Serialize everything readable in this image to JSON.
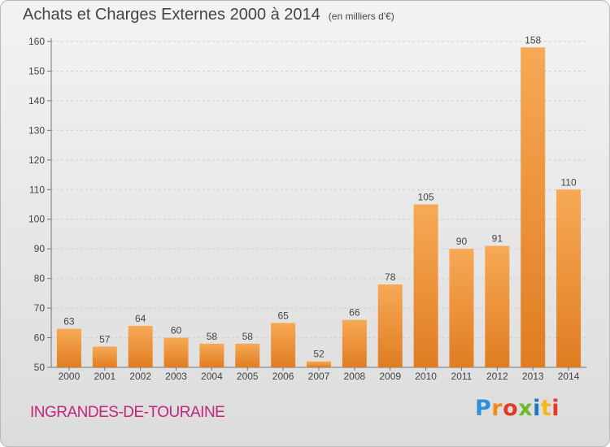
{
  "header": {
    "title": "Achats et Charges Externes 2000 à 2014",
    "unit": "(en milliers d'€)"
  },
  "footer": {
    "town": "INGRANDES-DE-TOURAINE",
    "logo": [
      "P",
      "r",
      "o",
      "x",
      "i",
      "t",
      "i"
    ]
  },
  "colors": {
    "bar_light": "#f7a955",
    "bar_dark": "#e07d22",
    "grid": "#cfcfcf",
    "axis": "#777777",
    "town": "#c2267a"
  },
  "chart_data": {
    "type": "bar",
    "title": "Achats et Charges Externes 2000 à 2014",
    "subtitle": "(en milliers d'€)",
    "categories": [
      "2000",
      "2001",
      "2002",
      "2003",
      "2004",
      "2005",
      "2006",
      "2007",
      "2008",
      "2009",
      "2010",
      "2011",
      "2012",
      "2013",
      "2014"
    ],
    "values": [
      63,
      57,
      64,
      60,
      58,
      58,
      65,
      52,
      66,
      78,
      105,
      90,
      91,
      158,
      110
    ],
    "ylim": [
      50,
      160
    ],
    "yticks": [
      50,
      60,
      70,
      80,
      90,
      100,
      110,
      120,
      130,
      140,
      150,
      160
    ],
    "grid": "horizontal dashed",
    "legend": "none"
  }
}
